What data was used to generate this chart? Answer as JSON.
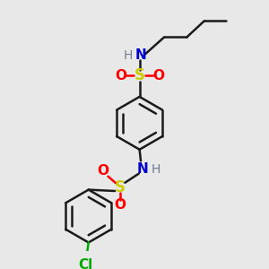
{
  "background_color": "#e8e8e8",
  "bond_color": "#1a1a1a",
  "S_color": "#cccc00",
  "O_color": "#ff0000",
  "N_color": "#0000cc",
  "H_color": "#708090",
  "Cl_color": "#00aa00",
  "figsize": [
    3.0,
    3.0
  ],
  "dpi": 100,
  "xlim": [
    0,
    10
  ],
  "ylim": [
    0,
    10
  ]
}
